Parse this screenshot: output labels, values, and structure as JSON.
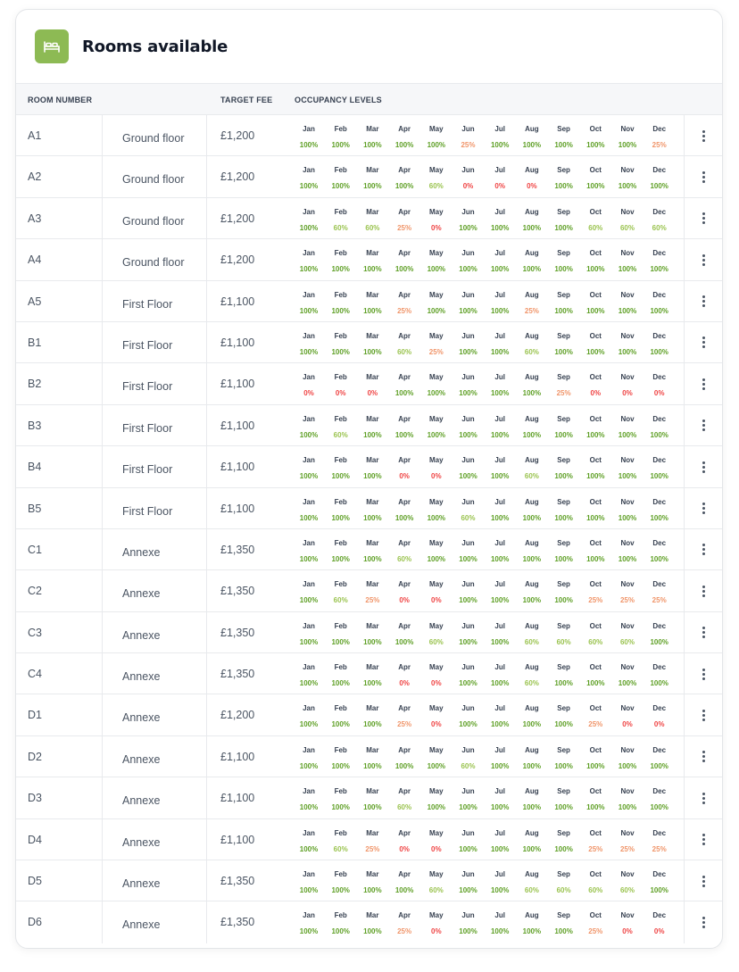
{
  "header": {
    "title": "Rooms available",
    "icon": "bed-icon",
    "accent": "#8dba54"
  },
  "columns": {
    "room_number": "ROOM NUMBER",
    "target_fee": "TARGET FEE",
    "occupancy": "OCCUPANCY LEVELS"
  },
  "months": [
    "Jan",
    "Feb",
    "Mar",
    "Apr",
    "May",
    "Jun",
    "Jul",
    "Aug",
    "Sep",
    "Oct",
    "Nov",
    "Dec"
  ],
  "level_colors": {
    "100%": "#5e9f25",
    "60%": "#9ac34f",
    "25%": "#f0956a",
    "0%": "#ef4444"
  },
  "rows": [
    {
      "room": "A1",
      "floor": "Ground floor",
      "fee": "£1,200",
      "occupancy": [
        "100%",
        "100%",
        "100%",
        "100%",
        "100%",
        "25%",
        "100%",
        "100%",
        "100%",
        "100%",
        "100%",
        "25%"
      ]
    },
    {
      "room": "A2",
      "floor": "Ground floor",
      "fee": "£1,200",
      "occupancy": [
        "100%",
        "100%",
        "100%",
        "100%",
        "60%",
        "0%",
        "0%",
        "0%",
        "100%",
        "100%",
        "100%",
        "100%"
      ]
    },
    {
      "room": "A3",
      "floor": "Ground floor",
      "fee": "£1,200",
      "occupancy": [
        "100%",
        "60%",
        "60%",
        "25%",
        "0%",
        "100%",
        "100%",
        "100%",
        "100%",
        "60%",
        "60%",
        "60%"
      ]
    },
    {
      "room": "A4",
      "floor": "Ground floor",
      "fee": "£1,200",
      "occupancy": [
        "100%",
        "100%",
        "100%",
        "100%",
        "100%",
        "100%",
        "100%",
        "100%",
        "100%",
        "100%",
        "100%",
        "100%"
      ]
    },
    {
      "room": "A5",
      "floor": "First Floor",
      "fee": "£1,100",
      "occupancy": [
        "100%",
        "100%",
        "100%",
        "25%",
        "100%",
        "100%",
        "100%",
        "25%",
        "100%",
        "100%",
        "100%",
        "100%"
      ]
    },
    {
      "room": "B1",
      "floor": "First Floor",
      "fee": "£1,100",
      "occupancy": [
        "100%",
        "100%",
        "100%",
        "60%",
        "25%",
        "100%",
        "100%",
        "60%",
        "100%",
        "100%",
        "100%",
        "100%"
      ]
    },
    {
      "room": "B2",
      "floor": "First Floor",
      "fee": "£1,100",
      "occupancy": [
        "0%",
        "0%",
        "0%",
        "100%",
        "100%",
        "100%",
        "100%",
        "100%",
        "25%",
        "0%",
        "0%",
        "0%"
      ]
    },
    {
      "room": "B3",
      "floor": "First Floor",
      "fee": "£1,100",
      "occupancy": [
        "100%",
        "60%",
        "100%",
        "100%",
        "100%",
        "100%",
        "100%",
        "100%",
        "100%",
        "100%",
        "100%",
        "100%"
      ]
    },
    {
      "room": "B4",
      "floor": "First Floor",
      "fee": "£1,100",
      "occupancy": [
        "100%",
        "100%",
        "100%",
        "0%",
        "0%",
        "100%",
        "100%",
        "60%",
        "100%",
        "100%",
        "100%",
        "100%"
      ]
    },
    {
      "room": "B5",
      "floor": "First Floor",
      "fee": "£1,100",
      "occupancy": [
        "100%",
        "100%",
        "100%",
        "100%",
        "100%",
        "60%",
        "100%",
        "100%",
        "100%",
        "100%",
        "100%",
        "100%"
      ]
    },
    {
      "room": "C1",
      "floor": "Annexe",
      "fee": "£1,350",
      "occupancy": [
        "100%",
        "100%",
        "100%",
        "60%",
        "100%",
        "100%",
        "100%",
        "100%",
        "100%",
        "100%",
        "100%",
        "100%"
      ]
    },
    {
      "room": "C2",
      "floor": "Annexe",
      "fee": "£1,350",
      "occupancy": [
        "100%",
        "60%",
        "25%",
        "0%",
        "0%",
        "100%",
        "100%",
        "100%",
        "100%",
        "25%",
        "25%",
        "25%"
      ]
    },
    {
      "room": "C3",
      "floor": "Annexe",
      "fee": "£1,350",
      "occupancy": [
        "100%",
        "100%",
        "100%",
        "100%",
        "60%",
        "100%",
        "100%",
        "60%",
        "60%",
        "60%",
        "60%",
        "100%"
      ]
    },
    {
      "room": "C4",
      "floor": "Annexe",
      "fee": "£1,350",
      "occupancy": [
        "100%",
        "100%",
        "100%",
        "0%",
        "0%",
        "100%",
        "100%",
        "60%",
        "100%",
        "100%",
        "100%",
        "100%"
      ]
    },
    {
      "room": "D1",
      "floor": "Annexe",
      "fee": "£1,200",
      "occupancy": [
        "100%",
        "100%",
        "100%",
        "25%",
        "0%",
        "100%",
        "100%",
        "100%",
        "100%",
        "25%",
        "0%",
        "0%"
      ]
    },
    {
      "room": "D2",
      "floor": "Annexe",
      "fee": "£1,100",
      "occupancy": [
        "100%",
        "100%",
        "100%",
        "100%",
        "100%",
        "60%",
        "100%",
        "100%",
        "100%",
        "100%",
        "100%",
        "100%"
      ]
    },
    {
      "room": "D3",
      "floor": "Annexe",
      "fee": "£1,100",
      "occupancy": [
        "100%",
        "100%",
        "100%",
        "60%",
        "100%",
        "100%",
        "100%",
        "100%",
        "100%",
        "100%",
        "100%",
        "100%"
      ]
    },
    {
      "room": "D4",
      "floor": "Annexe",
      "fee": "£1,100",
      "occupancy": [
        "100%",
        "60%",
        "25%",
        "0%",
        "0%",
        "100%",
        "100%",
        "100%",
        "100%",
        "25%",
        "25%",
        "25%"
      ]
    },
    {
      "room": "D5",
      "floor": "Annexe",
      "fee": "£1,350",
      "occupancy": [
        "100%",
        "100%",
        "100%",
        "100%",
        "60%",
        "100%",
        "100%",
        "60%",
        "60%",
        "60%",
        "60%",
        "100%"
      ]
    },
    {
      "room": "D6",
      "floor": "Annexe",
      "fee": "£1,350",
      "occupancy": [
        "100%",
        "100%",
        "100%",
        "25%",
        "0%",
        "100%",
        "100%",
        "100%",
        "100%",
        "25%",
        "0%",
        "0%"
      ]
    }
  ]
}
